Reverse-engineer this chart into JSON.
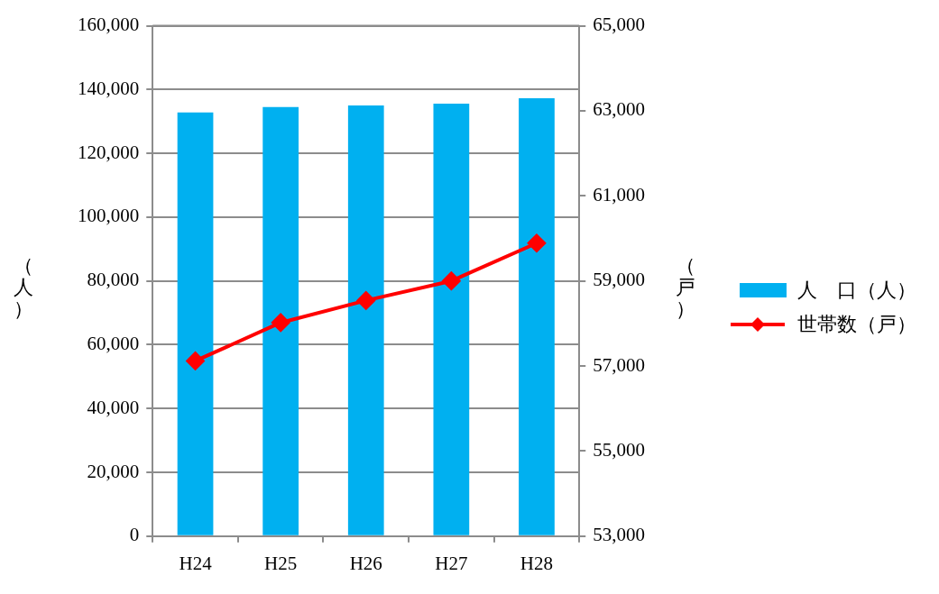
{
  "chart_data": {
    "type": "bar",
    "categories": [
      "H24",
      "H25",
      "H26",
      "H27",
      "H28"
    ],
    "series": [
      {
        "name": "人　口（人）",
        "color": "#00b0f0",
        "values": [
          132800,
          134500,
          135000,
          135600,
          137300
        ]
      },
      {
        "name": "世帯数（戸）",
        "type": "line",
        "axis": "y2",
        "color": "#ff0000",
        "marker": "diamond",
        "values": [
          57120,
          58020,
          58540,
          59000,
          59890
        ]
      }
    ],
    "ylabel": "（人）",
    "y2label": "（戸）",
    "ylim": [
      0,
      160000
    ],
    "yticks": [
      {
        "value": 0,
        "label": "0"
      },
      {
        "value": 20000,
        "label": "20,000"
      },
      {
        "value": 40000,
        "label": "40,000"
      },
      {
        "value": 60000,
        "label": "60,000"
      },
      {
        "value": 80000,
        "label": "80,000"
      },
      {
        "value": 100000,
        "label": "100,000"
      },
      {
        "value": 120000,
        "label": "120,000"
      },
      {
        "value": 140000,
        "label": "140,000"
      },
      {
        "value": 160000,
        "label": "160,000"
      }
    ],
    "y2lim": [
      53000,
      65000
    ],
    "y2ticks": [
      {
        "value": 53000,
        "label": "53,000"
      },
      {
        "value": 55000,
        "label": "55,000"
      },
      {
        "value": 57000,
        "label": "57,000"
      },
      {
        "value": 59000,
        "label": "59,000"
      },
      {
        "value": 61000,
        "label": "61,000"
      },
      {
        "value": 63000,
        "label": "63,000"
      },
      {
        "value": 65000,
        "label": "65,000"
      }
    ],
    "grid": "y",
    "legend": "right"
  }
}
